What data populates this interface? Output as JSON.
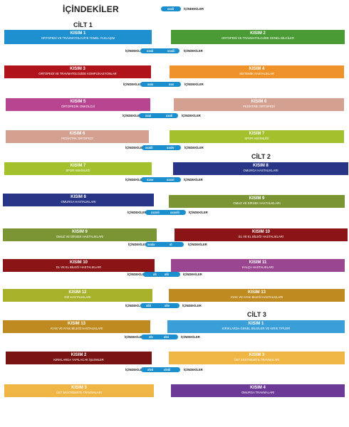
{
  "header": {
    "title": "İÇİNDEKİLER",
    "pill": "xxvii",
    "label": "İÇİNDEKİLER"
  },
  "volumes": [
    "CİLT 1",
    "CİLT 2",
    "CİLT 3"
  ],
  "sections": [
    {
      "kisim": "KISIM 1",
      "title": "ORTOPEDİ VE TRAVMATOLOJİYE TEMEL YAKLAŞIM",
      "color": "#1e8fcf"
    },
    {
      "kisim": "KISIM 2",
      "title": "ORTOPEDİ VE TRAVMATOLOJİDE GENEL BİLGİLER",
      "color": "#4a9a36"
    },
    {
      "kisim": "KISIM 3",
      "title": "ORTOPEDİ VE TRAVMATOLOJİDE KOMPLİKASYONLAR",
      "color": "#b0141a"
    },
    {
      "kisim": "KISIM 4",
      "title": "SİSTEMİK HASTALIKLAR",
      "color": "#f0922a"
    },
    {
      "kisim": "KISIM 5",
      "title": "ORTOPEDİK ONKOLOJİ",
      "color": "#b84590"
    },
    {
      "kisim": "KISIM 6",
      "title": "PEDİATRİK ORTOPEDİ",
      "color": "#d4a191"
    },
    {
      "kisim": "KISIM 6",
      "title": "PEDİATRİK ORTOPEDİ",
      "color": "#d4a191"
    },
    {
      "kisim": "KISIM 7",
      "title": "SPOR HEKİMLİĞİ",
      "color": "#a2c12c"
    },
    {
      "kisim": "KISIM 7",
      "title": "SPOR HEKİMLİĞİ",
      "color": "#a2c12c"
    },
    {
      "kisim": "KISIM 8",
      "title": "OMURGA HASTALIKLARI",
      "color": "#293687"
    },
    {
      "kisim": "KISIM 8",
      "title": "OMURGA HASTALIKLARI",
      "color": "#293687"
    },
    {
      "kisim": "KISIM 9",
      "title": "OMUZ VE DİRSEK HASTALIKLARI",
      "color": "#7b9434"
    },
    {
      "kisim": "KISIM 9",
      "title": "OMUZ VE DİRSEK HASTALIKLARI",
      "color": "#7b9434"
    },
    {
      "kisim": "KISIM 10",
      "title": "EL VE EL BİLEĞİ HASTALIKLARI",
      "color": "#8a1416"
    },
    {
      "kisim": "KISIM 10",
      "title": "EL VE EL BİLEĞİ HASTALIKLARI",
      "color": "#8a1416"
    },
    {
      "kisim": "KISIM 11",
      "title": "KALÇA HASTALIKLARI",
      "color": "#9a4690"
    },
    {
      "kisim": "KISIM 12",
      "title": "DİZ HASTALIKLARI",
      "color": "#a7b12a"
    },
    {
      "kisim": "KISIM 13",
      "title": "AYAK VE AYAK BİLEĞİ HASTALIKLARI",
      "color": "#bf8a1f"
    },
    {
      "kisim": "KISIM 13",
      "title": "AYAK VE AYAK BİLEĞİ HASTALIKLARI",
      "color": "#bf8a1f"
    },
    {
      "kisim": "KISIM 1",
      "title": "KIRIKLARDA GENEL BİLGİLER VE KIRIK TİPLERİ",
      "color": "#3a9ed8"
    },
    {
      "kisim": "KISIM 2",
      "title": "KIRIKLARDA YAPILACAK İŞLEMLER",
      "color": "#7a1412"
    },
    {
      "kisim": "KISIM 3",
      "title": "ÜST EKSTREMİTE TRAVMALARI",
      "color": "#efb545"
    },
    {
      "kisim": "KISIM 3",
      "title": "ÜST EKSTREMİTE TRAVMALARI",
      "color": "#efb545"
    },
    {
      "kisim": "KISIM 4",
      "title": "OMURGA TRAVMALARI",
      "color": "#6c3a96"
    }
  ],
  "toc_rows": [
    {
      "label": "İÇİNDEKİLER",
      "a": "xxxii",
      "b": "xxxiii",
      "after": "İÇİNDEKİLER"
    },
    {
      "label": "İÇİNDEKİLER",
      "a": "xxix",
      "b": "xxx",
      "after": "İÇİNDEKİLER"
    },
    {
      "label": "İÇİNDEKİLER",
      "a": "xxxi",
      "b": "xxxii",
      "after": "İÇİNDEKİLER"
    },
    {
      "label": "İÇİNDEKİLER",
      "a": "xxxiii",
      "b": "xxxiv",
      "after": "İÇİNDEKİLER"
    },
    {
      "label": "İÇİNDEKİLER",
      "a": "xxxv",
      "b": "xxxvi",
      "after": "İÇİNDEKİLER"
    },
    {
      "label": "İÇİNDEKİLER",
      "a": "xxxvii",
      "b": "xxxviii",
      "after": "İÇİNDEKİLER"
    },
    {
      "label": "İÇİNDEKİLER",
      "a": "xxxix",
      "b": "xl",
      "after": "İÇİNDEKİLER"
    },
    {
      "label": "İÇİNDEKİLER",
      "a": "xli",
      "b": "xlii",
      "after": "İÇİNDEKİLER"
    },
    {
      "label": "İÇİNDEKİLER",
      "a": "xliii",
      "b": "xliv",
      "after": "İÇİNDEKİLER"
    },
    {
      "label": "İÇİNDEKİLER",
      "a": "xlv",
      "b": "xlvi",
      "after": "İÇİNDEKİLER"
    },
    {
      "label": "İÇİNDEKİLER",
      "a": "xlvii",
      "b": "xlviii",
      "after": "İÇİNDEKİLER"
    }
  ]
}
